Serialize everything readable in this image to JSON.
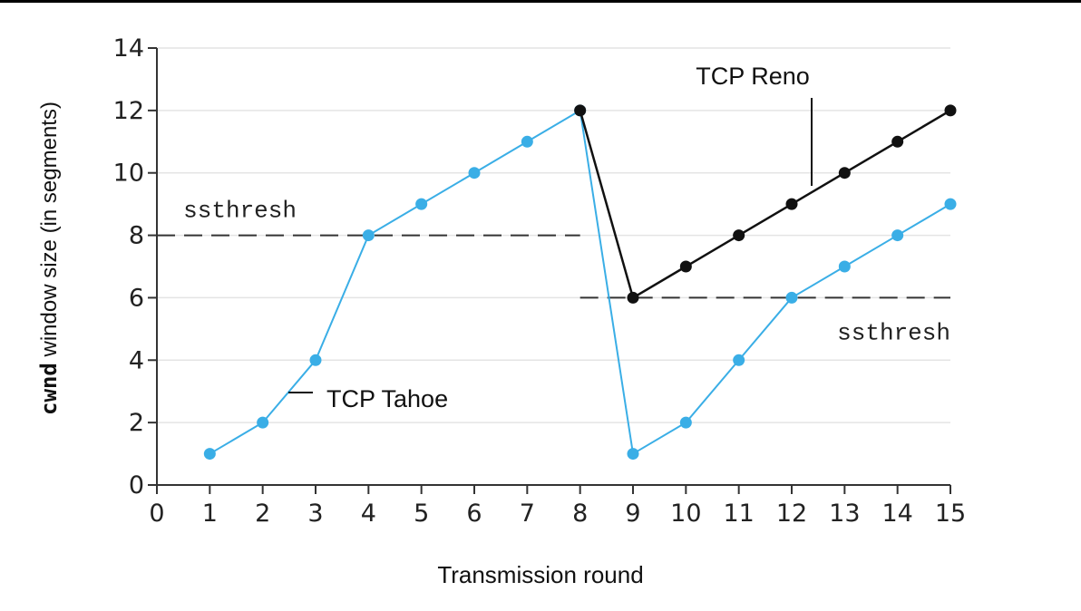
{
  "chart_data": {
    "type": "line",
    "xlabel": "Transmission round",
    "ylabel_prefix": "cwnd",
    "ylabel_rest": " window size (in segments)",
    "xlim": [
      0,
      15
    ],
    "ylim": [
      0,
      14
    ],
    "x_ticks": [
      0,
      1,
      2,
      3,
      4,
      5,
      6,
      7,
      8,
      9,
      10,
      11,
      12,
      13,
      14,
      15
    ],
    "y_ticks": [
      0,
      2,
      4,
      6,
      8,
      10,
      12,
      14
    ],
    "grid": "horizontal",
    "series": [
      {
        "name": "TCP Tahoe",
        "color": "#3aaee6",
        "x": [
          1,
          2,
          3,
          4,
          5,
          6,
          7,
          8,
          9,
          10,
          11,
          12,
          13,
          14,
          15
        ],
        "y": [
          1,
          2,
          4,
          8,
          9,
          10,
          11,
          12,
          1,
          2,
          4,
          6,
          7,
          8,
          9
        ]
      },
      {
        "name": "TCP Reno",
        "color": "#111111",
        "x": [
          8,
          9,
          10,
          11,
          12,
          13,
          14,
          15
        ],
        "y": [
          12,
          6,
          7,
          8,
          9,
          10,
          11,
          12
        ]
      }
    ],
    "thresholds": [
      {
        "label": "ssthresh",
        "y": 8,
        "x_from": 0,
        "x_to": 8
      },
      {
        "label": "ssthresh",
        "y": 6,
        "x_from": 8,
        "x_to": 15
      }
    ]
  }
}
